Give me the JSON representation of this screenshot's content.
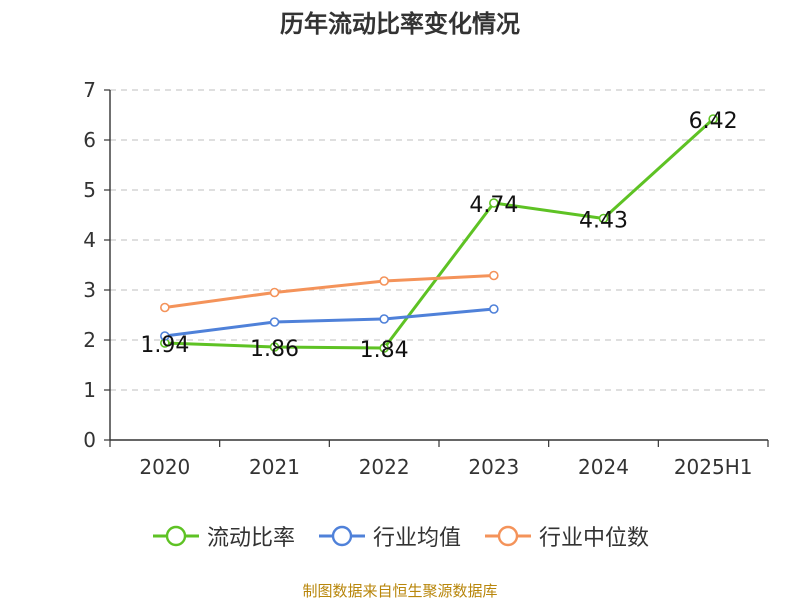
{
  "chart_data": {
    "type": "line",
    "title": "历年流动比率变化情况",
    "categories": [
      "2020",
      "2021",
      "2022",
      "2023",
      "2024",
      "2025H1"
    ],
    "ylim": [
      0,
      7
    ],
    "yticks": [
      "0",
      "1",
      "2",
      "3",
      "4",
      "5",
      "6",
      "7"
    ],
    "grid": true,
    "legend_position": "bottom",
    "series": [
      {
        "name": "流动比率",
        "color": "#5ec224",
        "values": [
          1.94,
          1.86,
          1.84,
          4.74,
          4.43,
          6.42
        ],
        "labels": [
          "1.94",
          "1.86",
          "1.84",
          "4.74",
          "4.43",
          "6.42"
        ]
      },
      {
        "name": "行业均值",
        "color": "#4f81d9",
        "values": [
          2.08,
          2.36,
          2.42,
          2.62,
          null,
          null
        ]
      },
      {
        "name": "行业中位数",
        "color": "#f4935a",
        "values": [
          2.65,
          2.95,
          3.18,
          3.29,
          null,
          null
        ]
      }
    ]
  },
  "source": "制图数据来自恒生聚源数据库"
}
